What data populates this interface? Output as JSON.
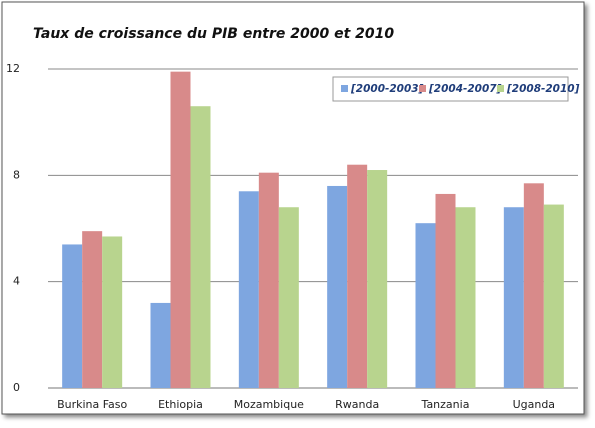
{
  "chart_data": {
    "type": "bar",
    "title": "Taux de croissance du PIB entre 2000 et 2010",
    "categories": [
      "Burkina Faso",
      "Ethiopia",
      "Mozambique",
      "Rwanda",
      "Tanzania",
      "Uganda"
    ],
    "series": [
      {
        "name": "[2000-2003]",
        "color": "#7ea6e0",
        "values": [
          5.4,
          3.2,
          7.4,
          7.6,
          6.2,
          6.8
        ]
      },
      {
        "name": "[2004-2007]",
        "color": "#d88a8a",
        "values": [
          5.9,
          11.9,
          8.1,
          8.4,
          7.3,
          7.7
        ]
      },
      {
        "name": "[2008-2010]",
        "color": "#b8d48e",
        "values": [
          5.7,
          10.6,
          6.8,
          8.2,
          6.8,
          6.9
        ]
      }
    ],
    "ylim": [
      0,
      12
    ],
    "yticks": [
      0,
      4,
      8,
      12
    ],
    "grid": true,
    "legend": "top-right"
  }
}
